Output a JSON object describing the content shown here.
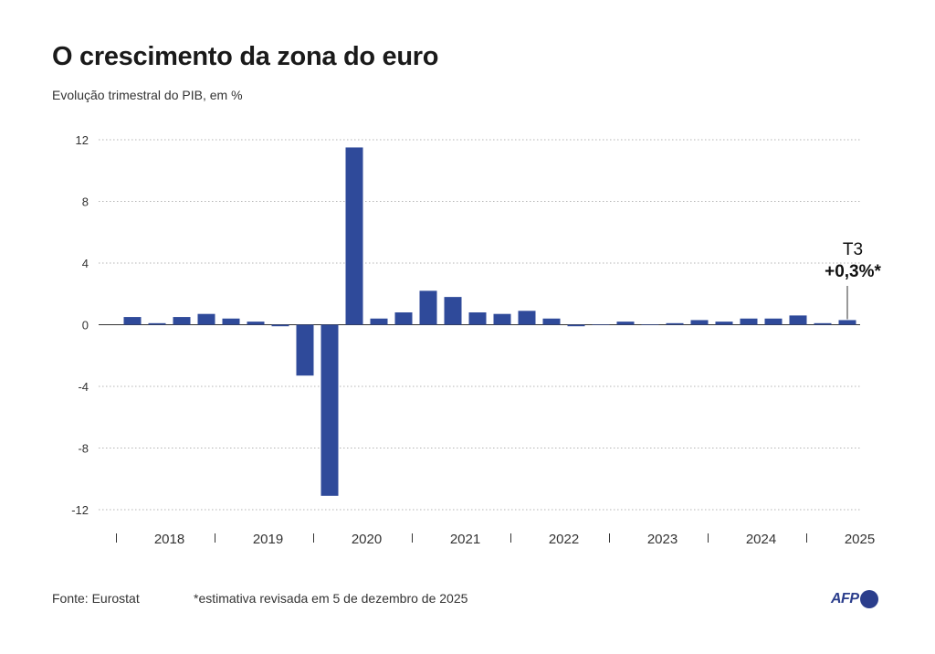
{
  "header": {
    "title": "O crescimento da zona do euro",
    "subtitle": "Evolução trimestral do PIB, em %"
  },
  "footer": {
    "source": "Fonte: Eurostat",
    "note": "*estimativa revisada em 5 de dezembro de 2025"
  },
  "logo": {
    "text": "AFP"
  },
  "colors": {
    "bar": "#2f4a9a",
    "grid": "#b5b5b5",
    "axis": "#333333",
    "logo": "#2b3e8c"
  },
  "chart_data": {
    "type": "bar",
    "title": "O crescimento da zona do euro",
    "subtitle": "Evolução trimestral do PIB, em %",
    "ylim": [
      -12,
      12
    ],
    "yticks": [
      12,
      8,
      4,
      0,
      -4,
      -8,
      -12
    ],
    "years": [
      "2018",
      "2019",
      "2020",
      "2021",
      "2022",
      "2023",
      "2024",
      "2025"
    ],
    "quarters_per_year": 4,
    "values": [
      0.5,
      0.1,
      0.5,
      0.7,
      0.4,
      0.2,
      -0.1,
      -3.3,
      -11.1,
      11.5,
      0.4,
      0.8,
      2.2,
      1.8,
      0.8,
      0.7,
      0.9,
      0.4,
      -0.1,
      0.0,
      0.2,
      0.0,
      0.1,
      0.3,
      0.2,
      0.4,
      0.4,
      0.6,
      0.1,
      0.3
    ],
    "grid": true,
    "annotation": {
      "label": "T3",
      "value": "+0,3%*"
    }
  }
}
